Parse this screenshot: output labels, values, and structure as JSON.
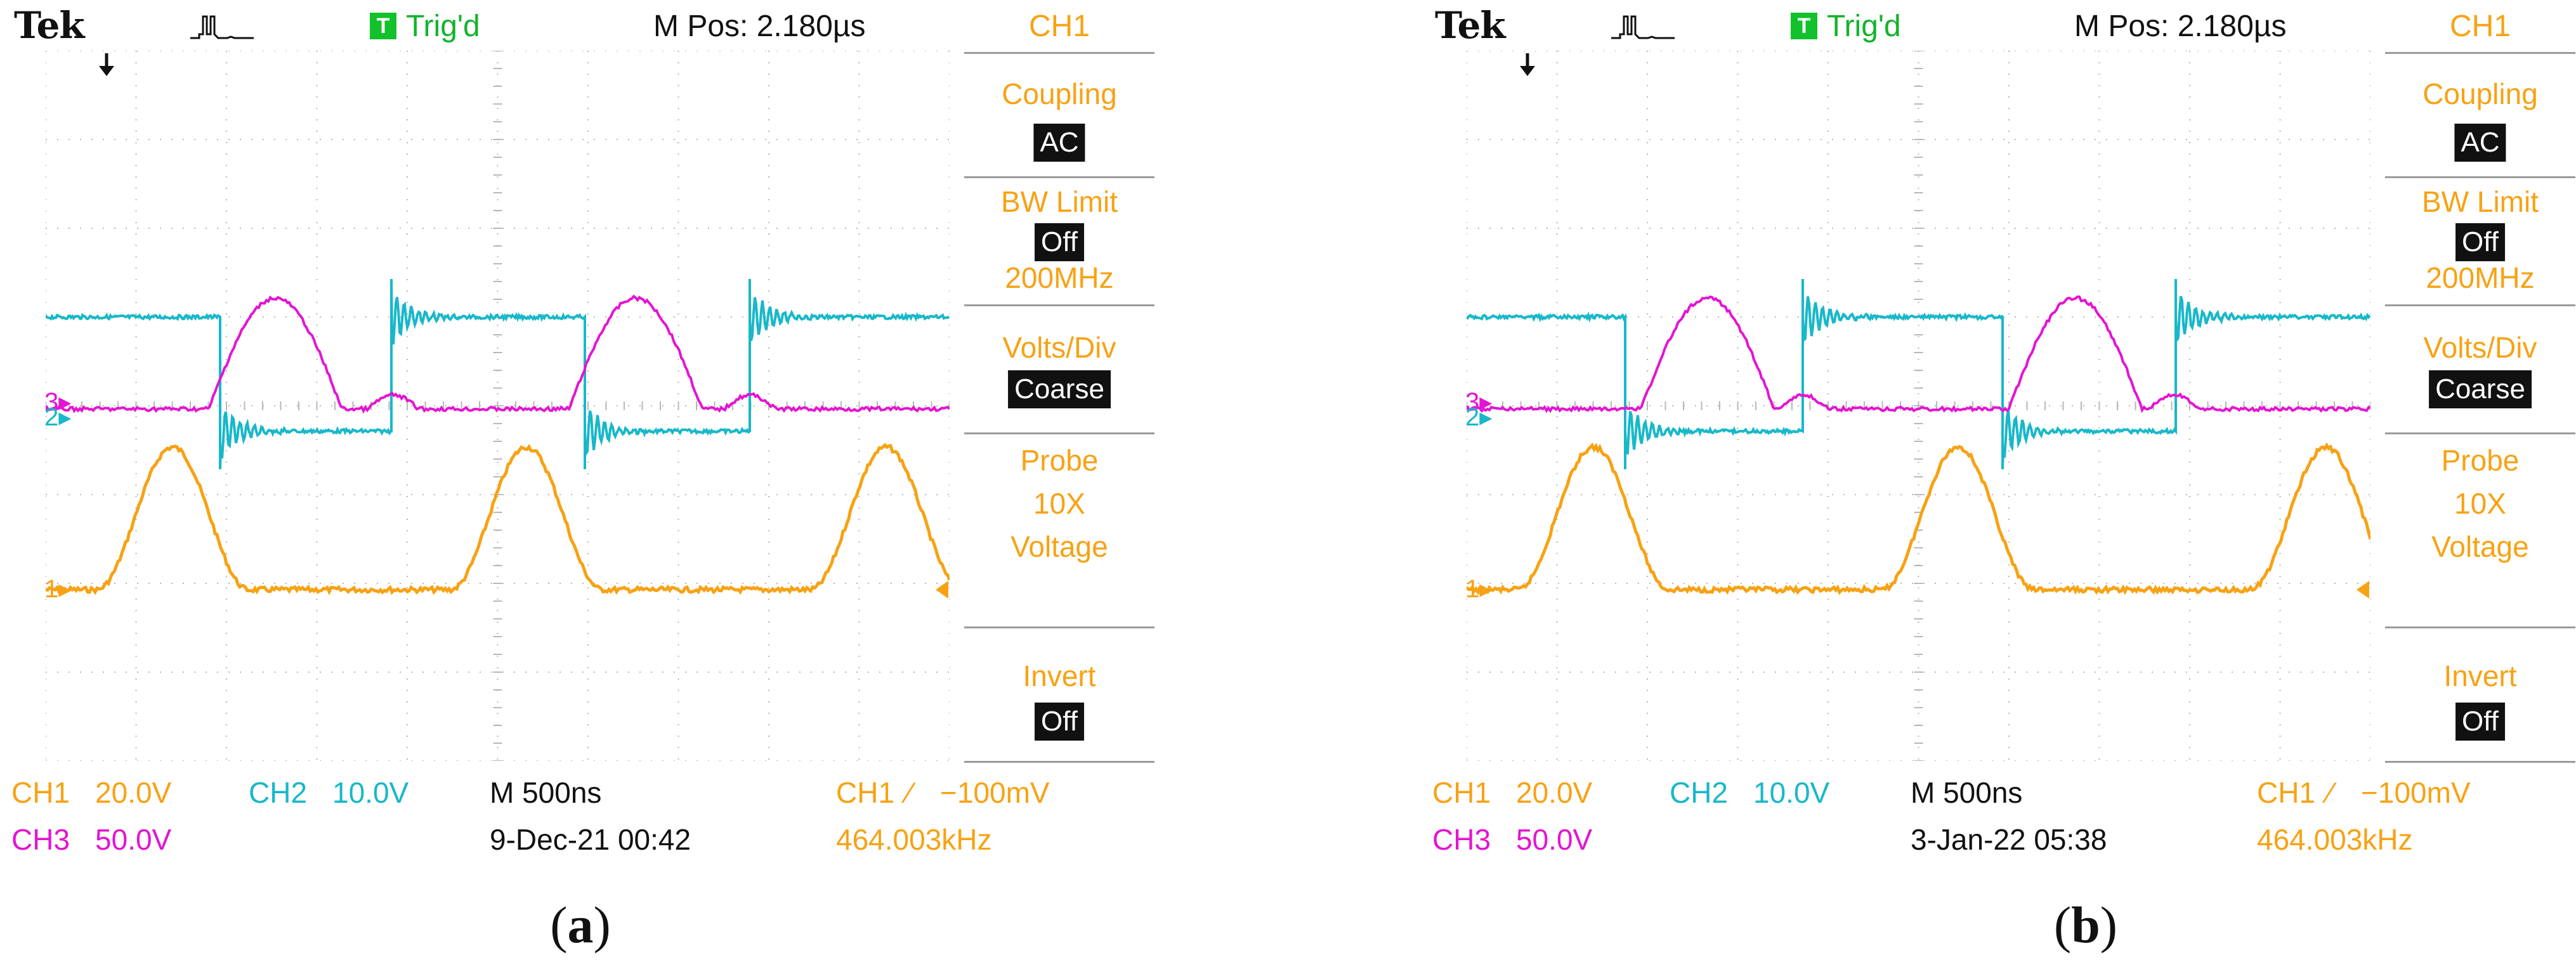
{
  "panels": [
    {
      "id": "a",
      "header": {
        "brand": "Tek",
        "trigger_badge": "T",
        "trigger_status": "Trig'd",
        "position": "M Pos: 2.180µs"
      },
      "menu": {
        "title": "CH1",
        "coupling_label": "Coupling",
        "coupling_value": "AC",
        "bw_label": "BW Limit",
        "bw_value": "Off",
        "bw_freq": "200MHz",
        "volts_label": "Volts/Div",
        "volts_value": "Coarse",
        "probe_label": "Probe",
        "probe_factor": "10X",
        "probe_type": "Voltage",
        "invert_label": "Invert",
        "invert_value": "Off"
      },
      "footer": {
        "ch1_label": "CH1",
        "ch1_scale": "20.0V",
        "ch2_label": "CH2",
        "ch2_scale": "10.0V",
        "timebase": "M 500ns",
        "trig_src": "CH1",
        "trig_slope": "∕",
        "trig_level": "−100mV",
        "ch3_label": "CH3",
        "ch3_scale": "50.0V",
        "datetime": "9-Dec-21 00:42",
        "frequency": "464.003kHz"
      },
      "channel_markers": {
        "ch1": "1",
        "ch2": "2",
        "ch3": "3"
      },
      "caption": "a"
    },
    {
      "id": "b",
      "header": {
        "brand": "Tek",
        "trigger_badge": "T",
        "trigger_status": "Trig'd",
        "position": "M Pos: 2.180µs"
      },
      "menu": {
        "title": "CH1",
        "coupling_label": "Coupling",
        "coupling_value": "AC",
        "bw_label": "BW Limit",
        "bw_value": "Off",
        "bw_freq": "200MHz",
        "volts_label": "Volts/Div",
        "volts_value": "Coarse",
        "probe_label": "Probe",
        "probe_factor": "10X",
        "probe_type": "Voltage",
        "invert_label": "Invert",
        "invert_value": "Off"
      },
      "footer": {
        "ch1_label": "CH1",
        "ch1_scale": "20.0V",
        "ch2_label": "CH2",
        "ch2_scale": "10.0V",
        "timebase": "M 500ns",
        "trig_src": "CH1",
        "trig_slope": "∕",
        "trig_level": "−100mV",
        "ch3_label": "CH3",
        "ch3_scale": "50.0V",
        "datetime": "3-Jan-22 05:38",
        "frequency": "464.003kHz"
      },
      "channel_markers": {
        "ch1": "1",
        "ch2": "2",
        "ch3": "3"
      },
      "caption": "b"
    }
  ],
  "colors": {
    "ch1": "#f7a214",
    "ch2": "#18b8c9",
    "ch3": "#e414d2",
    "grid": "#b8b8b8"
  }
}
